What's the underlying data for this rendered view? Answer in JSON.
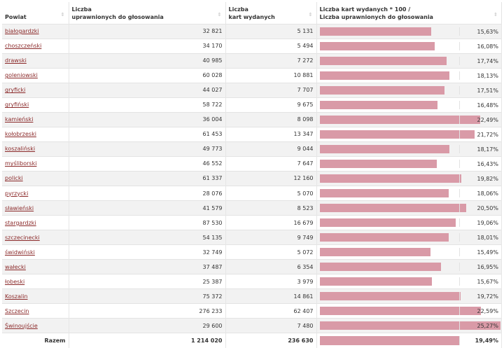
{
  "headers": {
    "c1": "Powiat",
    "c2a": "Liczba",
    "c2b": "uprawnionych do głosowania",
    "c3a": "Liczba",
    "c3b": "kart wydanych",
    "c4a": "Liczba kart wydanych * 100 /",
    "c4b": "Liczba uprawnionych do głosowania"
  },
  "rows": [
    {
      "name": "białogardzki",
      "eligible": "32 821",
      "cards": "5 131",
      "pct": "15,63%",
      "v": 15.63
    },
    {
      "name": "choszczeński",
      "eligible": "34 170",
      "cards": "5 494",
      "pct": "16,08%",
      "v": 16.08
    },
    {
      "name": "drawski",
      "eligible": "40 985",
      "cards": "7 272",
      "pct": "17,74%",
      "v": 17.74
    },
    {
      "name": "goleniowski",
      "eligible": "60 028",
      "cards": "10 881",
      "pct": "18,13%",
      "v": 18.13
    },
    {
      "name": "gryficki",
      "eligible": "44 027",
      "cards": "7 707",
      "pct": "17,51%",
      "v": 17.51
    },
    {
      "name": "gryfiński",
      "eligible": "58 722",
      "cards": "9 675",
      "pct": "16,48%",
      "v": 16.48
    },
    {
      "name": "kamieński",
      "eligible": "36 004",
      "cards": "8 098",
      "pct": "22,49%",
      "v": 22.49
    },
    {
      "name": "kołobrzeski",
      "eligible": "61 453",
      "cards": "13 347",
      "pct": "21,72%",
      "v": 21.72
    },
    {
      "name": "koszaliński",
      "eligible": "49 773",
      "cards": "9 044",
      "pct": "18,17%",
      "v": 18.17
    },
    {
      "name": "myśliborski",
      "eligible": "46 552",
      "cards": "7 647",
      "pct": "16,43%",
      "v": 16.43
    },
    {
      "name": "policki",
      "eligible": "61 337",
      "cards": "12 160",
      "pct": "19,82%",
      "v": 19.82
    },
    {
      "name": "pyrzycki",
      "eligible": "28 076",
      "cards": "5 070",
      "pct": "18,06%",
      "v": 18.06
    },
    {
      "name": "sławieński",
      "eligible": "41 579",
      "cards": "8 523",
      "pct": "20,50%",
      "v": 20.5
    },
    {
      "name": "stargardzki",
      "eligible": "87 530",
      "cards": "16 679",
      "pct": "19,06%",
      "v": 19.06
    },
    {
      "name": "szczecinecki",
      "eligible": "54 135",
      "cards": "9 749",
      "pct": "18,01%",
      "v": 18.01
    },
    {
      "name": "świdwiński",
      "eligible": "32 749",
      "cards": "5 072",
      "pct": "15,49%",
      "v": 15.49
    },
    {
      "name": "wałecki",
      "eligible": "37 487",
      "cards": "6 354",
      "pct": "16,95%",
      "v": 16.95
    },
    {
      "name": "łobeski",
      "eligible": "25 387",
      "cards": "3 979",
      "pct": "15,67%",
      "v": 15.67
    },
    {
      "name": "Koszalin",
      "eligible": "75 372",
      "cards": "14 861",
      "pct": "19,72%",
      "v": 19.72
    },
    {
      "name": "Szczecin",
      "eligible": "276 233",
      "cards": "62 407",
      "pct": "22,59%",
      "v": 22.59
    },
    {
      "name": "Świnoujście",
      "eligible": "29 600",
      "cards": "7 480",
      "pct": "25,27%",
      "v": 25.27
    }
  ],
  "total": {
    "label": "Razem",
    "eligible": "1 214 020",
    "cards": "236 630",
    "pct": "19,49%",
    "v": 19.49
  },
  "bar_max": 25.3,
  "colors": {
    "bar": "#d99aa7",
    "link": "#8b2a2a"
  }
}
